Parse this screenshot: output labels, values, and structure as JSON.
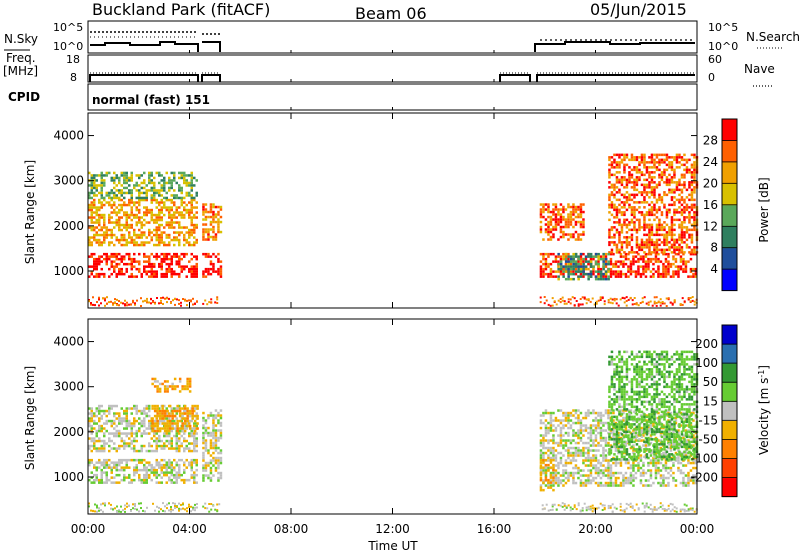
{
  "header": {
    "title": "Buckland Park (fitACF)",
    "beam": "Beam 06",
    "date": "05/Jun/2015"
  },
  "left_labels": {
    "nsky": "N.Sky",
    "freq_line1": "Freq.",
    "freq_line2": "[MHz]",
    "cpid": "CPID"
  },
  "right_labels": {
    "nsearch": "N.Search",
    "nave": "Nave"
  },
  "noise_panel": {
    "ticks_left": [
      "10^5",
      "10^0"
    ],
    "ticks_right": [
      "10^5",
      "10^0"
    ]
  },
  "freq_panel": {
    "ticks_left": [
      "18",
      "8"
    ],
    "ticks_right": [
      "60",
      "0"
    ]
  },
  "cpid_panel": {
    "mode_text": "normal (fast) 151"
  },
  "x_axis": {
    "label": "Time UT",
    "ticks": [
      "00:00",
      "04:00",
      "08:00",
      "12:00",
      "16:00",
      "20:00",
      "00:00"
    ]
  },
  "power_panel": {
    "ylabel": "Slant Range [km]",
    "yticks": [
      "1000",
      "2000",
      "3000",
      "4000"
    ],
    "colorbar_label": "Power [dB]",
    "colorbar_ticks": [
      "4",
      "8",
      "12",
      "16",
      "20",
      "24",
      "28"
    ],
    "colors": [
      "#0000ff",
      "#1f4e9c",
      "#2f7f5f",
      "#5aa85a",
      "#d8c000",
      "#f0a000",
      "#ff6000",
      "#ff0000"
    ]
  },
  "velocity_panel": {
    "ylabel": "Slant Range [km]",
    "yticks": [
      "1000",
      "2000",
      "3000",
      "4000"
    ],
    "colorbar_label": "Velocity [m s^-1]",
    "colorbar_ticks": [
      "-200",
      "-100",
      "-50",
      "-15",
      "15",
      "50",
      "100",
      "200"
    ],
    "colors": [
      "#ff0000",
      "#ff4000",
      "#ff8000",
      "#f0b000",
      "#c0c0c0",
      "#66cc33",
      "#339933",
      "#2a6fb0",
      "#0000cc"
    ]
  },
  "chart_data": [
    {
      "type": "heatmap",
      "title": "Power [dB]",
      "xlabel": "Time UT",
      "ylabel": "Slant Range [km]",
      "x_range_hours": [
        0,
        24
      ],
      "ylim_km": [
        180,
        4500
      ],
      "color_scale": [
        0,
        32
      ],
      "data_intervals_hours": [
        [
          0.0,
          4.3
        ],
        [
          4.5,
          5.2
        ],
        [
          17.8,
          24.0
        ]
      ],
      "echo_regions": [
        {
          "t": [
            0.0,
            4.3
          ],
          "range_km": [
            900,
            1400
          ],
          "power_db": 30
        },
        {
          "t": [
            0.0,
            4.3
          ],
          "range_km": [
            1600,
            2600
          ],
          "power_db": 22
        },
        {
          "t": [
            0.0,
            4.3
          ],
          "range_km": [
            2600,
            3200
          ],
          "power_db": 14
        },
        {
          "t": [
            4.5,
            5.2
          ],
          "range_km": [
            900,
            1400
          ],
          "power_db": 30
        },
        {
          "t": [
            4.5,
            5.2
          ],
          "range_km": [
            1700,
            2500
          ],
          "power_db": 24
        },
        {
          "t": [
            17.8,
            24.0
          ],
          "range_km": [
            900,
            1400
          ],
          "power_db": 28
        },
        {
          "t": [
            17.8,
            19.5
          ],
          "range_km": [
            1700,
            2500
          ],
          "power_db": 26
        },
        {
          "t": [
            20.5,
            24.0
          ],
          "range_km": [
            1400,
            3600
          ],
          "power_db": 26
        },
        {
          "t": [
            18.5,
            20.5
          ],
          "range_km": [
            800,
            1400
          ],
          "power_db": 12
        }
      ]
    },
    {
      "type": "heatmap",
      "title": "Velocity [m s^-1]",
      "xlabel": "Time UT",
      "ylabel": "Slant Range [km]",
      "x_range_hours": [
        0,
        24
      ],
      "ylim_km": [
        180,
        4500
      ],
      "color_scale": [
        -200,
        200
      ],
      "data_intervals_hours": [
        [
          0.0,
          4.3
        ],
        [
          4.5,
          5.2
        ],
        [
          17.8,
          24.0
        ]
      ],
      "echo_regions": [
        {
          "t": [
            0.0,
            4.3
          ],
          "range_km": [
            900,
            1400
          ],
          "velocity": 0
        },
        {
          "t": [
            0.0,
            4.3
          ],
          "range_km": [
            1600,
            2600
          ],
          "velocity": 0
        },
        {
          "t": [
            2.5,
            4.3
          ],
          "range_km": [
            2000,
            2600
          ],
          "velocity": -40
        },
        {
          "t": [
            2.5,
            4.0
          ],
          "range_km": [
            2900,
            3200
          ],
          "velocity": -40
        },
        {
          "t": [
            4.5,
            5.2
          ],
          "range_km": [
            900,
            2500
          ],
          "velocity": 0
        },
        {
          "t": [
            17.8,
            24.0
          ],
          "range_km": [
            800,
            2500
          ],
          "velocity": 0
        },
        {
          "t": [
            20.5,
            24.0
          ],
          "range_km": [
            1400,
            3800
          ],
          "velocity": 40
        },
        {
          "t": [
            17.8,
            18.3
          ],
          "range_km": [
            700,
            1400
          ],
          "velocity": -40
        }
      ]
    }
  ]
}
